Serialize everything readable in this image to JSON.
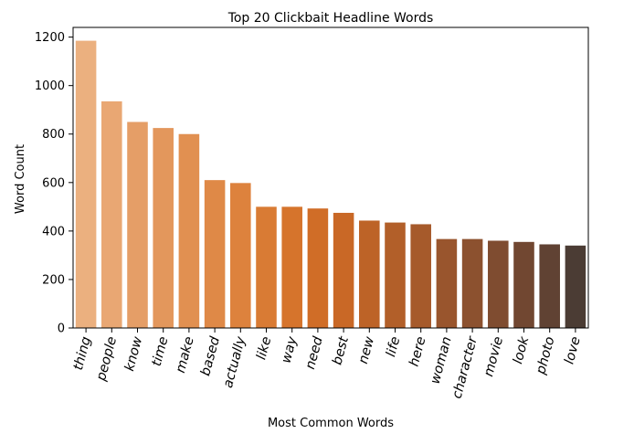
{
  "chart_data": {
    "type": "bar",
    "title": "Top 20 Clickbait Headline Words",
    "xlabel": "Most Common Words",
    "ylabel": "Word Count",
    "ylim": [
      0,
      1240
    ],
    "yticks": [
      0,
      200,
      400,
      600,
      800,
      1000,
      1200
    ],
    "grid": false,
    "categories": [
      "thing",
      "people",
      "know",
      "time",
      "make",
      "based",
      "actually",
      "like",
      "way",
      "need",
      "best",
      "new",
      "life",
      "here",
      "woman",
      "character",
      "movie",
      "look",
      "photo",
      "love"
    ],
    "values": [
      1185,
      935,
      850,
      825,
      800,
      610,
      598,
      500,
      500,
      493,
      475,
      443,
      435,
      428,
      367,
      367,
      360,
      355,
      345,
      340
    ],
    "colors": [
      "#ebb07f",
      "#e9a773",
      "#e59e67",
      "#e3975c",
      "#e19051",
      "#df8947",
      "#dd823d",
      "#d97b34",
      "#d6742c",
      "#d06d27",
      "#c96826",
      "#bd6327",
      "#b25f29",
      "#a65a2b",
      "#99552d",
      "#8c512f",
      "#7f4c30",
      "#714731",
      "#604233",
      "#4b3c34"
    ]
  }
}
